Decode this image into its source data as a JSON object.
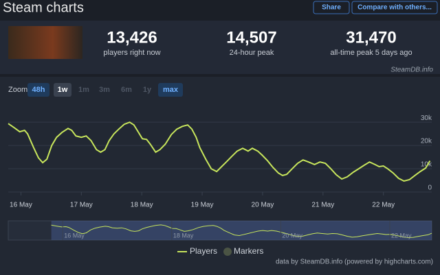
{
  "header": {
    "title": "Steam charts",
    "buttons": [
      "Share",
      "Compare with others..."
    ]
  },
  "stats": [
    {
      "value": "13,426",
      "label": "players right now"
    },
    {
      "value": "14,507",
      "label": "24-hour peak"
    },
    {
      "value": "31,470",
      "label": "all-time peak 5 days ago"
    }
  ],
  "source": "SteamDB.info",
  "zoom": {
    "label": "Zoom",
    "options": [
      "48h",
      "1w",
      "1m",
      "3m",
      "6m",
      "1y",
      "max"
    ]
  },
  "chart_data": {
    "type": "line",
    "x": [
      15.79,
      15.89,
      15.98,
      16.06,
      16.11,
      16.21,
      16.29,
      16.36,
      16.43,
      16.51,
      16.59,
      16.68,
      16.78,
      16.84,
      16.91,
      17.0,
      17.08,
      17.16,
      17.25,
      17.32,
      17.39,
      17.46,
      17.54,
      17.62,
      17.71,
      17.8,
      17.87,
      17.94,
      18.01,
      18.08,
      18.14,
      18.23,
      18.3,
      18.39,
      18.49,
      18.58,
      18.67,
      18.76,
      18.83,
      18.9,
      18.96,
      19.06,
      19.15,
      19.24,
      19.31,
      19.4,
      19.49,
      19.58,
      19.67,
      19.76,
      19.83,
      19.92,
      19.99,
      20.08,
      20.17,
      20.26,
      20.33,
      20.4,
      20.49,
      20.58,
      20.67,
      20.76,
      20.86,
      20.95,
      21.04,
      21.13,
      21.22,
      21.31,
      21.4,
      21.5,
      21.59,
      21.68,
      21.77,
      21.86,
      21.93,
      22.0,
      22.07,
      22.16,
      22.25,
      22.34,
      22.43,
      22.52,
      22.61,
      22.7,
      22.77
    ],
    "series": [
      {
        "name": "Players",
        "color": "#c8e65c",
        "values": [
          29400,
          27600,
          25900,
          26500,
          25000,
          19100,
          14700,
          12600,
          14100,
          20000,
          23500,
          25600,
          27300,
          26500,
          24100,
          23500,
          24100,
          22100,
          18200,
          17100,
          18200,
          22100,
          25000,
          27000,
          29100,
          30000,
          28800,
          25900,
          22900,
          22600,
          20600,
          17100,
          18200,
          20600,
          24700,
          27000,
          28200,
          28800,
          27000,
          23500,
          19100,
          14100,
          10000,
          8800,
          10600,
          12900,
          15300,
          17600,
          18800,
          17600,
          18800,
          17600,
          15900,
          13500,
          10600,
          8200,
          7100,
          7600,
          10000,
          12300,
          13800,
          12900,
          11800,
          12900,
          12300,
          10000,
          7400,
          5600,
          6500,
          8500,
          10000,
          11500,
          12900,
          11800,
          10900,
          11200,
          10000,
          8200,
          5900,
          4700,
          5300,
          7100,
          8800,
          10300,
          13400
        ]
      }
    ],
    "markers": {
      "name": "Markers",
      "color": "#4b5444"
    },
    "xlim": [
      15.79,
      22.8
    ],
    "xticks": [
      {
        "value": 16,
        "label": "16 May"
      },
      {
        "value": 17,
        "label": "17 May"
      },
      {
        "value": 18,
        "label": "18 May"
      },
      {
        "value": 19,
        "label": "19 May"
      },
      {
        "value": 20,
        "label": "20 May"
      },
      {
        "value": 21,
        "label": "21 May"
      },
      {
        "value": 22,
        "label": "22 May"
      }
    ],
    "ylim": [
      0,
      38000
    ],
    "yticks": [
      0,
      {
        "value": 10000,
        "label": "10k"
      },
      {
        "value": 20000,
        "label": "20k"
      },
      {
        "value": 30000,
        "label": "30k"
      }
    ],
    "grid": true,
    "navigator": {
      "xlim": [
        15,
        22.77
      ],
      "xticks": [
        {
          "value": 16,
          "label": "16 May"
        },
        {
          "value": 18,
          "label": "18 May"
        },
        {
          "value": 20,
          "label": "20 May"
        },
        {
          "value": 22,
          "label": "22 May"
        }
      ]
    }
  },
  "credit": "data by SteamDB.info (powered by highcharts.com)"
}
